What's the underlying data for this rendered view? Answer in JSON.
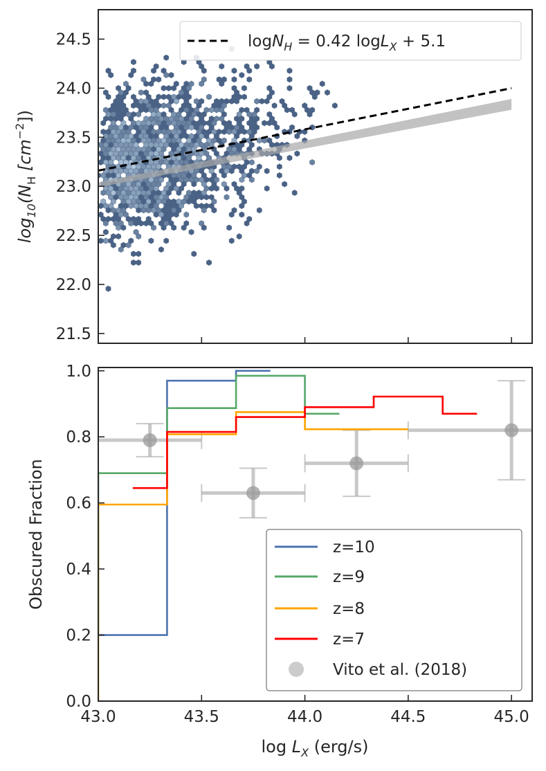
{
  "colors": {
    "z10": "#4c72b0",
    "z9": "#55a868",
    "z8": "#ffa500",
    "z7": "#ff0000",
    "vito": "#b0b0b0",
    "hex_dark": "#4a6285",
    "hex_light": "#cfe6f6",
    "fit_line": "#000000",
    "fit_band": "#a8a8a8",
    "axes": "#262626"
  },
  "chart_data": [
    {
      "type": "hexbin",
      "panel": "top",
      "title": "",
      "xlabel": "",
      "ylabel_parts": [
        "log",
        "10",
        "(N",
        "H",
        " [cm",
        "−2",
        "])"
      ],
      "xlim": [
        43.0,
        45.1
      ],
      "ylim": [
        21.4,
        24.8
      ],
      "xticks": [
        43.5,
        44.0,
        44.5,
        45.0
      ],
      "yticks": [
        21.5,
        22.0,
        22.5,
        23.0,
        23.5,
        24.0,
        24.5
      ],
      "ytick_labels": [
        "21.5",
        "22.0",
        "22.5",
        "23.0",
        "23.5",
        "24.0",
        "24.5"
      ],
      "fit": {
        "slope": 0.42,
        "intercept": 5.1,
        "x_range": [
          43.0,
          45.0
        ]
      },
      "fit_band": {
        "y_at_start": [
          22.99,
          23.04
        ],
        "y_at_end": [
          23.78,
          23.89
        ]
      },
      "legend": {
        "placement": "top-right",
        "label_parts": [
          "log",
          "N",
          "H",
          " = 0.42 log",
          "L",
          "X",
          " + 5.1"
        ]
      },
      "density_model": {
        "x_peak": 43.1,
        "y_peak": 23.0,
        "points": 1600,
        "seed": 7
      }
    },
    {
      "type": "step",
      "panel": "bottom",
      "title": "",
      "xlabel_parts": [
        "log ",
        "L",
        "X",
        " (erg/s)"
      ],
      "ylabel": "Obscured Fraction",
      "xlim": [
        43.0,
        45.1
      ],
      "ylim": [
        0.0,
        1.01
      ],
      "xticks": [
        43.0,
        43.5,
        44.0,
        44.5,
        45.0
      ],
      "xtick_labels": [
        "43.0",
        "43.5",
        "44.0",
        "44.5",
        "45.0"
      ],
      "yticks": [
        0.0,
        0.2,
        0.4,
        0.6,
        0.8,
        1.0
      ],
      "ytick_labels": [
        "0.0",
        "0.2",
        "0.4",
        "0.6",
        "0.8",
        "1.0"
      ],
      "series": [
        {
          "name": "z=10",
          "color_key": "z10",
          "x": [
            43.0,
            43.333,
            43.333,
            43.667,
            43.667,
            43.833
          ],
          "y": [
            0.2,
            0.2,
            0.97,
            0.97,
            1.0,
            1.0
          ]
        },
        {
          "name": "z=9",
          "color_key": "z9",
          "x": [
            43.0,
            43.0,
            43.333,
            43.333,
            43.667,
            43.667,
            44.0,
            44.0,
            44.167
          ],
          "y": [
            0.2,
            0.69,
            0.69,
            0.887,
            0.887,
            0.985,
            0.985,
            0.87,
            0.87
          ]
        },
        {
          "name": "z=8",
          "color_key": "z8",
          "x": [
            43.0,
            43.0,
            43.333,
            43.333,
            43.667,
            43.667,
            44.0,
            44.0,
            44.5
          ],
          "y": [
            0.0,
            0.595,
            0.595,
            0.808,
            0.808,
            0.875,
            0.875,
            0.823,
            0.823
          ]
        },
        {
          "name": "z=7",
          "color_key": "z7",
          "x": [
            43.167,
            43.333,
            43.333,
            43.667,
            43.667,
            44.0,
            44.0,
            44.333,
            44.333,
            44.667,
            44.667,
            44.833
          ],
          "y": [
            0.645,
            0.645,
            0.815,
            0.815,
            0.86,
            0.86,
            0.89,
            0.89,
            0.922,
            0.922,
            0.87,
            0.87
          ]
        }
      ],
      "vito": {
        "name": "Vito et al. (2018)",
        "x": [
          43.25,
          43.75,
          44.25,
          45.0
        ],
        "y": [
          0.79,
          0.63,
          0.72,
          0.82
        ],
        "xerr": [
          0.25,
          0.25,
          0.25,
          0.5
        ],
        "yerr_low": [
          0.05,
          0.075,
          0.1,
          0.15
        ],
        "yerr_high": [
          0.05,
          0.075,
          0.1,
          0.15
        ]
      },
      "legend": {
        "placement": "lower-right"
      }
    }
  ]
}
